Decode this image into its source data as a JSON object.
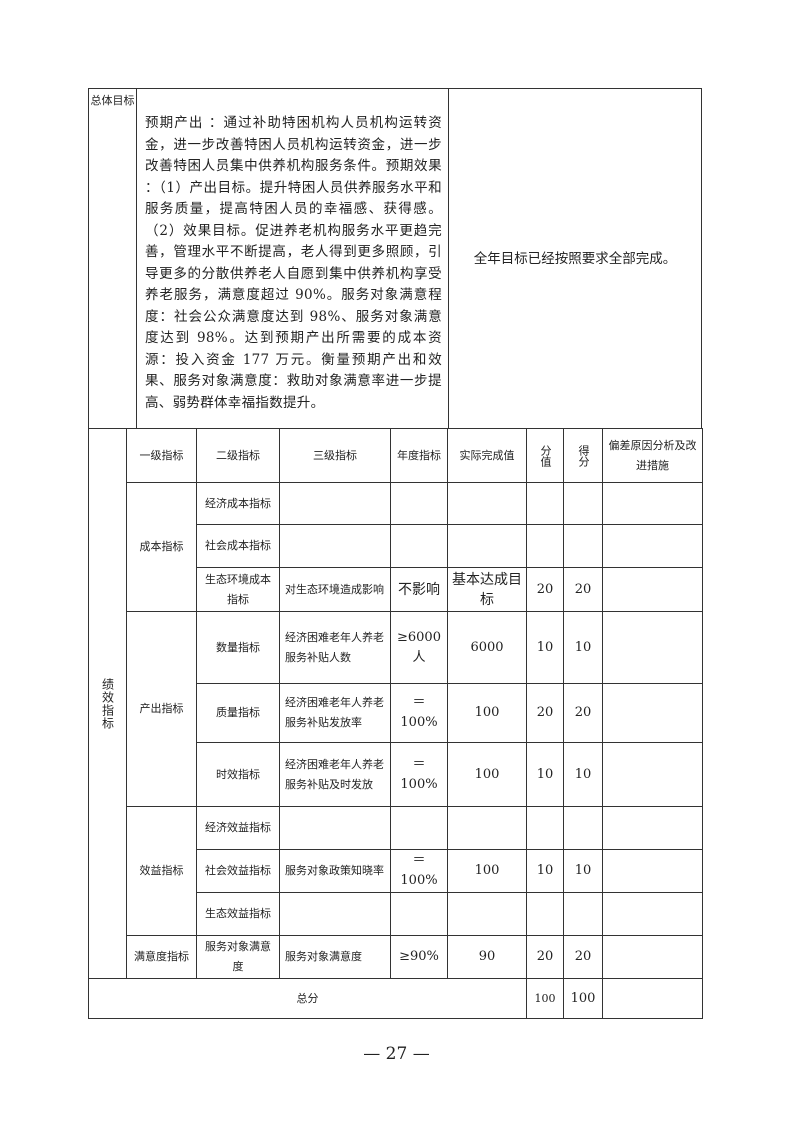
{
  "overall_goal": {
    "label": "总体目标",
    "content": "预期产出 ：通过补助特困机构人员机构运转资金，进一步改善特困人员机构运转资金，进一步改善特困人员集中供养机构服务条件。预期效果 ：（1）产出目标。提升特困人员供养服务水平和服务质量，提高特困人员的幸福感、获得感。（2）效果目标。促进养老机构服务水平更趋完善，管理水平不断提高，老人得到更多照顾，引导更多的分散供养老人自愿到集中供养机构享受养老服务，满意度超过 90%。服务对象满意程度：社会公众满意度达到 98%、服务对象满意度达到 98%。达到预期产出所需要的成本资源：投入资金 177 万元。衡量预期产出和效果、服务对象满意度：救助对象满意率进一步提高、弱势群体幸福指数提升。",
    "result": "全年目标已经按照要求全部完成。"
  },
  "performance": {
    "label": "绩效指标",
    "headers": [
      "一级指标",
      "二级指标",
      "三级指标",
      "年度指标",
      "实际完成值",
      "分值",
      "得分",
      "偏差原因分析及改进措施"
    ],
    "groups": [
      {
        "level1": "成本指标",
        "rows": [
          {
            "level2": "经济成本指标",
            "level3": "",
            "annual": "",
            "actual": "",
            "score": "",
            "got": "",
            "note": ""
          },
          {
            "level2": "社会成本指标",
            "level3": "",
            "annual": "",
            "actual": "",
            "score": "",
            "got": "",
            "note": ""
          },
          {
            "level2": "生态环境成本指标",
            "level3": "对生态环境造成影响",
            "annual": "不影响",
            "actual": "基本达成目标",
            "score": "20",
            "got": "20",
            "note": ""
          }
        ]
      },
      {
        "level1": "产出指标",
        "rows": [
          {
            "level2": "数量指标",
            "level3": "经济困难老年人养老服务补贴人数",
            "annual": "≥6000人",
            "actual": "6000",
            "score": "10",
            "got": "10",
            "note": ""
          },
          {
            "level2": "质量指标",
            "level3": "经济困难老年人养老服务补贴发放率",
            "annual": "＝100%",
            "actual": "100",
            "score": "20",
            "got": "20",
            "note": ""
          },
          {
            "level2": "时效指标",
            "level3": "经济困难老年人养老服务补贴及时发放",
            "annual": "＝100%",
            "actual": "100",
            "score": "10",
            "got": "10",
            "note": ""
          }
        ]
      },
      {
        "level1": "效益指标",
        "rows": [
          {
            "level2": "经济效益指标",
            "level3": "",
            "annual": "",
            "actual": "",
            "score": "",
            "got": "",
            "note": ""
          },
          {
            "level2": "社会效益指标",
            "level3": "服务对象政策知晓率",
            "annual": "＝100%",
            "actual": "100",
            "score": "10",
            "got": "10",
            "note": ""
          },
          {
            "level2": "生态效益指标",
            "level3": "",
            "annual": "",
            "actual": "",
            "score": "",
            "got": "",
            "note": ""
          }
        ]
      },
      {
        "level1": "满意度指标",
        "rows": [
          {
            "level2": "服务对象满意度",
            "level3": "服务对象满意度",
            "annual": "≥90%",
            "actual": "90",
            "score": "20",
            "got": "20",
            "note": ""
          }
        ]
      }
    ],
    "total": {
      "label": "总分",
      "score": "100",
      "got": "100",
      "note": ""
    }
  },
  "page_number": "— 27 —"
}
